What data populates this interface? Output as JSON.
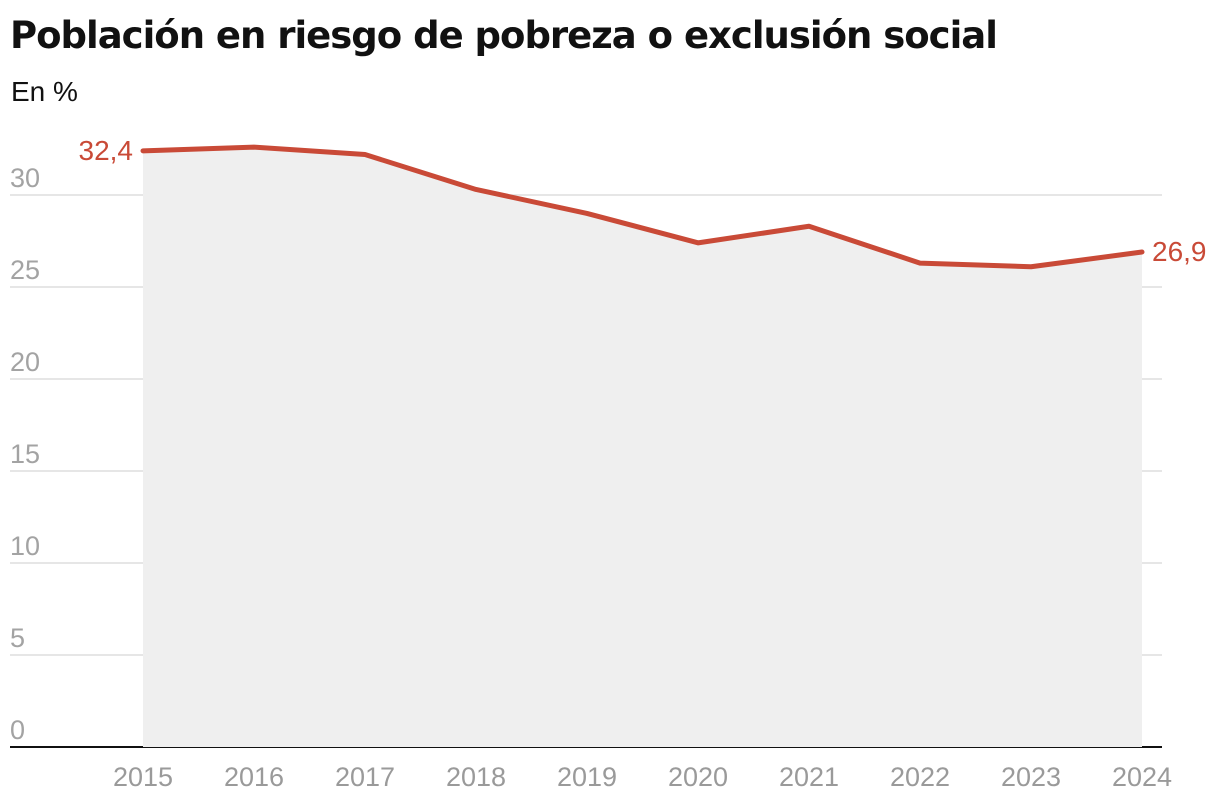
{
  "header": {
    "title": "Población en riesgo de pobreza o exclusión social",
    "subtitle": "En %"
  },
  "colors": {
    "line": "#c94a37",
    "area": "#efefef",
    "grid": "#dddddd",
    "axis": "#111111"
  },
  "chart_data": {
    "type": "area",
    "title": "Población en riesgo de pobreza o exclusión social",
    "subtitle": "En %",
    "xlabel": "",
    "ylabel": "",
    "x": [
      "2015",
      "2016",
      "2017",
      "2018",
      "2019",
      "2020",
      "2021",
      "2022",
      "2023",
      "2024"
    ],
    "series": [
      {
        "values": [
          32.4,
          32.6,
          32.2,
          30.3,
          29.0,
          27.4,
          28.3,
          26.3,
          26.1,
          26.9
        ]
      }
    ],
    "ylim": [
      0,
      30
    ],
    "yticks": [
      "0",
      "5",
      "10",
      "15",
      "20",
      "25",
      "30"
    ],
    "annotations": [
      {
        "x": "2015",
        "text": "32,4"
      },
      {
        "x": "2024",
        "text": "26,9"
      }
    ],
    "grid": true,
    "legend": "none"
  }
}
